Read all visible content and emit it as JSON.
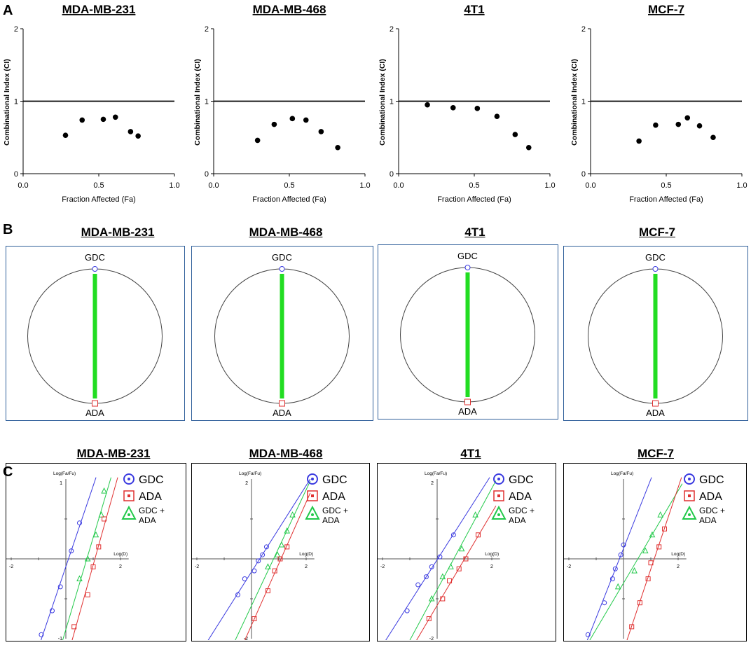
{
  "panels": {
    "a": "A",
    "b": "B",
    "c": "C"
  },
  "cell_lines": [
    "MDA-MB-231",
    "MDA-MB-468",
    "4T1",
    "MCF-7"
  ],
  "chart_data": [
    {
      "type": "scatter",
      "panel": "A",
      "title": "MDA-MB-231",
      "xlabel": "Fraction Affected (Fa)",
      "ylabel": "Combinational Index (CI)",
      "xlim": [
        0,
        1
      ],
      "ylim": [
        0,
        2
      ],
      "xticks": [
        "0.0",
        "0.5",
        "1.0"
      ],
      "yticks": [
        "0",
        "1",
        "2"
      ],
      "reference_line": 1,
      "points": [
        [
          0.28,
          0.53
        ],
        [
          0.39,
          0.74
        ],
        [
          0.53,
          0.75
        ],
        [
          0.61,
          0.78
        ],
        [
          0.71,
          0.58
        ],
        [
          0.76,
          0.52
        ]
      ]
    },
    {
      "type": "scatter",
      "panel": "A",
      "title": "MDA-MB-468",
      "xlabel": "Fraction Affected (Fa)",
      "ylabel": "Combinational Index (CI)",
      "xlim": [
        0,
        1
      ],
      "ylim": [
        0,
        2
      ],
      "xticks": [
        "0.0",
        "0.5",
        "1.0"
      ],
      "yticks": [
        "0",
        "1",
        "2"
      ],
      "reference_line": 1,
      "points": [
        [
          0.29,
          0.46
        ],
        [
          0.4,
          0.68
        ],
        [
          0.52,
          0.76
        ],
        [
          0.61,
          0.74
        ],
        [
          0.71,
          0.58
        ],
        [
          0.82,
          0.36
        ]
      ]
    },
    {
      "type": "scatter",
      "panel": "A",
      "title": "4T1",
      "xlabel": "Fraction Affected (Fa)",
      "ylabel": "Combinational Index (CI)",
      "xlim": [
        0,
        1
      ],
      "ylim": [
        0,
        2
      ],
      "xticks": [
        "0.0",
        "0.5",
        "1.0"
      ],
      "yticks": [
        "0",
        "1",
        "2"
      ],
      "reference_line": 1,
      "points": [
        [
          0.19,
          0.95
        ],
        [
          0.36,
          0.91
        ],
        [
          0.52,
          0.9
        ],
        [
          0.65,
          0.79
        ],
        [
          0.77,
          0.54
        ],
        [
          0.86,
          0.36
        ]
      ]
    },
    {
      "type": "scatter",
      "panel": "A",
      "title": "MCF-7",
      "xlabel": "Fraction Affected (Fa)",
      "ylabel": "Combinational Index (CI)",
      "xlim": [
        0,
        1
      ],
      "ylim": [
        0,
        2
      ],
      "xticks": [
        "0.0",
        "0.5",
        "1.0"
      ],
      "yticks": [
        "0",
        "1",
        "2"
      ],
      "reference_line": 1,
      "points": [
        [
          0.32,
          0.45
        ],
        [
          0.43,
          0.67
        ],
        [
          0.58,
          0.68
        ],
        [
          0.64,
          0.77
        ],
        [
          0.72,
          0.66
        ],
        [
          0.81,
          0.5
        ]
      ]
    }
  ],
  "polygonograms": {
    "top_label": "GDC",
    "bottom_label": "ADA",
    "line_color": "#22dd22",
    "top_marker_color": "#3a3ae0",
    "bottom_marker_color": "#e03030"
  },
  "median_effect": {
    "ylabel": "Log(Fa/Fu)",
    "xlabel": "Log(D)",
    "legend": {
      "gdc": "GDC",
      "ada": "ADA",
      "combo_line1": "GDC +",
      "combo_line2": "ADA"
    },
    "colors": {
      "gdc": "#3a3ae0",
      "ada": "#e03030",
      "combo": "#22c94a"
    },
    "plots": [
      {
        "title": "MDA-MB-231",
        "xticks": [
          "-2",
          "2"
        ],
        "yticks": [
          "1",
          "-1"
        ],
        "ylim": [
          -1,
          1
        ],
        "gdc": [
          [
            -0.9,
            -0.95
          ],
          [
            -0.5,
            -0.65
          ],
          [
            -0.2,
            -0.35
          ],
          [
            0.2,
            0.1
          ],
          [
            0.5,
            0.45
          ]
        ],
        "ada": [
          [
            0.3,
            -0.85
          ],
          [
            0.8,
            -0.45
          ],
          [
            1.0,
            -0.1
          ],
          [
            1.2,
            0.15
          ],
          [
            1.4,
            0.5
          ]
        ],
        "combo": [
          [
            0.5,
            -0.25
          ],
          [
            0.8,
            0.0
          ],
          [
            1.1,
            0.3
          ],
          [
            1.3,
            0.55
          ],
          [
            1.4,
            0.85
          ]
        ]
      },
      {
        "title": "MDA-MB-468",
        "xticks": [
          "-2",
          "2"
        ],
        "yticks": [
          "2",
          "-2"
        ],
        "ylim": [
          -2,
          2
        ],
        "gdc": [
          [
            -0.5,
            -0.9
          ],
          [
            -0.25,
            -0.5
          ],
          [
            0.1,
            -0.3
          ],
          [
            0.25,
            -0.05
          ],
          [
            0.4,
            0.1
          ],
          [
            0.55,
            0.3
          ]
        ],
        "ada": [
          [
            0.1,
            -1.5
          ],
          [
            0.6,
            -0.8
          ],
          [
            0.85,
            -0.3
          ],
          [
            1.05,
            0.0
          ],
          [
            1.3,
            0.3
          ]
        ],
        "combo": [
          [
            0.6,
            -0.2
          ],
          [
            0.95,
            0.1
          ],
          [
            1.1,
            0.35
          ],
          [
            1.3,
            0.7
          ],
          [
            1.5,
            1.1
          ]
        ]
      },
      {
        "title": "4T1",
        "xticks": [
          "-2",
          "2"
        ],
        "yticks": [
          "2",
          "-2"
        ],
        "ylim": [
          -2,
          2
        ],
        "gdc": [
          [
            -1.1,
            -1.3
          ],
          [
            -0.7,
            -0.65
          ],
          [
            -0.4,
            -0.45
          ],
          [
            -0.2,
            -0.2
          ],
          [
            0.1,
            0.05
          ],
          [
            0.6,
            0.6
          ]
        ],
        "ada": [
          [
            -0.3,
            -1.5
          ],
          [
            0.2,
            -1.0
          ],
          [
            0.45,
            -0.55
          ],
          [
            0.8,
            -0.25
          ],
          [
            1.05,
            0.0
          ],
          [
            1.5,
            0.6
          ]
        ],
        "combo": [
          [
            -0.2,
            -1.0
          ],
          [
            0.2,
            -0.45
          ],
          [
            0.5,
            -0.2
          ],
          [
            0.9,
            0.25
          ],
          [
            1.4,
            1.1
          ]
        ]
      },
      {
        "title": "MCF-7",
        "xticks": [
          "-2",
          "2"
        ],
        "yticks": [],
        "ylim": [
          -2,
          2
        ],
        "gdc": [
          [
            -1.3,
            -1.9
          ],
          [
            -0.7,
            -1.1
          ],
          [
            -0.4,
            -0.5
          ],
          [
            -0.3,
            -0.25
          ],
          [
            -0.1,
            0.1
          ],
          [
            0.0,
            0.35
          ]
        ],
        "ada": [
          [
            0.3,
            -1.7
          ],
          [
            0.6,
            -1.1
          ],
          [
            0.9,
            -0.5
          ],
          [
            1.0,
            -0.1
          ],
          [
            1.3,
            0.3
          ],
          [
            1.5,
            0.75
          ]
        ],
        "combo": [
          [
            -0.2,
            -0.7
          ],
          [
            0.4,
            -0.3
          ],
          [
            0.8,
            0.2
          ],
          [
            1.05,
            0.6
          ],
          [
            1.35,
            1.1
          ]
        ]
      }
    ]
  }
}
